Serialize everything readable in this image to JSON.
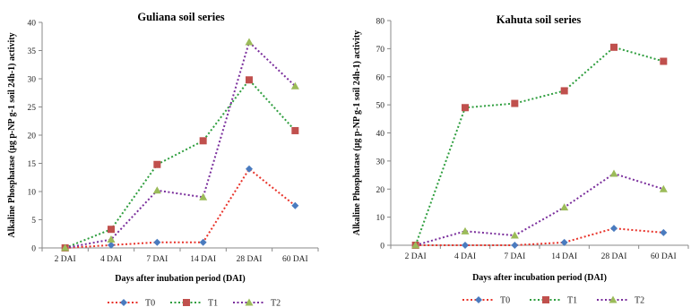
{
  "colors": {
    "T0": "#e8332a",
    "T1": "#2e9e3e",
    "T2": "#7a2e9c",
    "marker_T0": "#4a7bbf",
    "marker_T1": "#c0504d",
    "marker_T2": "#9bbb59"
  },
  "chart_data": [
    {
      "type": "line",
      "title": "Guliana soil series",
      "xlabel": "Days after inubation period (DAI)",
      "ylabel": "Alkaline Phosphatase (μg p-NP g-1 soil 24h-1) activity",
      "categories": [
        "2 DAI",
        "4 DAI",
        "7 DAI",
        "14 DAI",
        "28 DAI",
        "60 DAI"
      ],
      "ylim": [
        0,
        40
      ],
      "yticks": [
        0,
        5,
        10,
        15,
        20,
        25,
        30,
        35,
        40
      ],
      "series": [
        {
          "name": "T0",
          "values": [
            0,
            0.5,
            1,
            1,
            14,
            7.5
          ]
        },
        {
          "name": "T1",
          "values": [
            0,
            3.3,
            14.8,
            19,
            29.8,
            20.8
          ]
        },
        {
          "name": "T2",
          "values": [
            0,
            1.5,
            10.2,
            9,
            36.5,
            28.7
          ]
        }
      ],
      "legend": "bottom"
    },
    {
      "type": "line",
      "title": "Kahuta soil series",
      "xlabel": "Days after incubation period (DAI)",
      "ylabel": "Alkaline Phosphatase (μg p-NP g-1 soil 24h-1) activity",
      "categories": [
        "2 DAI",
        "4 DAI",
        "7 DAI",
        "14 DAI",
        "28 DAI",
        "60 DAI"
      ],
      "ylim": [
        0,
        80
      ],
      "yticks": [
        0,
        10,
        20,
        30,
        40,
        50,
        60,
        70,
        80
      ],
      "series": [
        {
          "name": "T0",
          "values": [
            0,
            0,
            0,
            1,
            6,
            4.5
          ]
        },
        {
          "name": "T1",
          "values": [
            0,
            49,
            50.5,
            55,
            70.5,
            65.5
          ]
        },
        {
          "name": "T2",
          "values": [
            0,
            5,
            3.5,
            13.5,
            25.5,
            20
          ]
        }
      ],
      "legend": "bottom"
    }
  ]
}
